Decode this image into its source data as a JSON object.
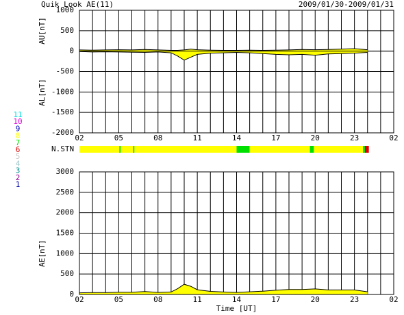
{
  "header": {
    "title": "Quik Look AE(11)",
    "date_range": "2009/01/30-2009/01/31"
  },
  "chart_data": [
    {
      "type": "area",
      "ylabels": [
        "AU[nT]",
        "AL[nT]"
      ],
      "x": [
        0,
        1,
        2,
        3,
        4,
        5,
        6,
        7,
        7.5,
        8,
        8.5,
        9,
        10,
        11,
        12,
        13,
        14,
        15,
        16,
        17,
        18,
        19,
        20,
        21,
        22
      ],
      "series": [
        {
          "color": "#ffff00",
          "values": [
            30,
            25,
            30,
            35,
            30,
            40,
            30,
            20,
            20,
            30,
            50,
            35,
            25,
            20,
            20,
            25,
            20,
            25,
            30,
            40,
            35,
            40,
            50,
            60,
            35
          ]
        },
        {
          "color": "#ffff00",
          "values": [
            -10,
            -20,
            -15,
            -20,
            -25,
            -30,
            -20,
            -40,
            -120,
            -220,
            -150,
            -80,
            -50,
            -40,
            -30,
            -40,
            -60,
            -80,
            -90,
            -80,
            -100,
            -70,
            -60,
            -50,
            -30
          ]
        }
      ],
      "xlim": [
        0,
        24
      ],
      "xticks": [
        {
          "value": 0,
          "label": "02"
        },
        {
          "value": 3,
          "label": "05"
        },
        {
          "value": 6,
          "label": "08"
        },
        {
          "value": 9,
          "label": "11"
        },
        {
          "value": 12,
          "label": "14"
        },
        {
          "value": 15,
          "label": "17"
        },
        {
          "value": 18,
          "label": "20"
        },
        {
          "value": 21,
          "label": "23"
        },
        {
          "value": 24,
          "label": "02"
        }
      ],
      "ylim": [
        -2000,
        1000
      ],
      "yticks": [
        -2000,
        -1500,
        -1000,
        -500,
        0,
        500,
        1000
      ],
      "x_grid_step": 1
    },
    {
      "type": "area",
      "ylabels": [
        "AE[nT]"
      ],
      "xlabel": "Time [UT]",
      "x": [
        0,
        1,
        2,
        3,
        4,
        5,
        6,
        7,
        7.5,
        8,
        8.5,
        9,
        10,
        11,
        12,
        13,
        14,
        15,
        16,
        17,
        18,
        19,
        20,
        21,
        22
      ],
      "series": [
        {
          "color": "#ffff00",
          "values": [
            40,
            45,
            45,
            55,
            55,
            70,
            50,
            60,
            140,
            250,
            200,
            115,
            75,
            60,
            50,
            65,
            80,
            105,
            120,
            120,
            135,
            110,
            110,
            110,
            65
          ]
        }
      ],
      "xlim": [
        0,
        24
      ],
      "xticks": [
        {
          "value": 0,
          "label": "02"
        },
        {
          "value": 3,
          "label": "05"
        },
        {
          "value": 6,
          "label": "08"
        },
        {
          "value": 9,
          "label": "11"
        },
        {
          "value": 12,
          "label": "14"
        },
        {
          "value": 15,
          "label": "17"
        },
        {
          "value": 18,
          "label": "20"
        },
        {
          "value": 21,
          "label": "23"
        },
        {
          "value": 24,
          "label": "02"
        }
      ],
      "ylim": [
        0,
        3000
      ],
      "yticks": [
        0,
        500,
        1000,
        1500,
        2000,
        2500,
        3000
      ],
      "x_grid_step": 1
    }
  ],
  "station_bar": {
    "label": "N.STN",
    "segments": [
      {
        "start": 0,
        "end": 3.05,
        "stations": 8
      },
      {
        "start": 3.05,
        "end": 3.15,
        "stations": 7
      },
      {
        "start": 3.15,
        "end": 4.1,
        "stations": 8
      },
      {
        "start": 4.1,
        "end": 4.2,
        "stations": 7
      },
      {
        "start": 4.2,
        "end": 12,
        "stations": 8
      },
      {
        "start": 12,
        "end": 13,
        "stations": 7
      },
      {
        "start": 13,
        "end": 17.6,
        "stations": 8
      },
      {
        "start": 17.6,
        "end": 17.9,
        "stations": 7
      },
      {
        "start": 17.9,
        "end": 21.65,
        "stations": 8
      },
      {
        "start": 21.65,
        "end": 21.8,
        "stations": 7
      },
      {
        "start": 21.8,
        "end": 22.1,
        "stations": 6
      }
    ]
  },
  "legend": [
    {
      "label": "11",
      "color": "#00e0e0"
    },
    {
      "label": "10",
      "color": "#e000e0"
    },
    {
      "label": "9",
      "color": "#0000c0"
    },
    {
      "label": "8",
      "color": "#ffff00"
    },
    {
      "label": "7",
      "color": "#00e000"
    },
    {
      "label": "6",
      "color": "#e00000"
    },
    {
      "label": "5",
      "color": "#c8c8c8"
    },
    {
      "label": "4",
      "color": "#a0c8c8"
    },
    {
      "label": "3",
      "color": "#008c8c"
    },
    {
      "label": "2",
      "color": "#8c008c"
    },
    {
      "label": "1",
      "color": "#0000a0"
    }
  ]
}
